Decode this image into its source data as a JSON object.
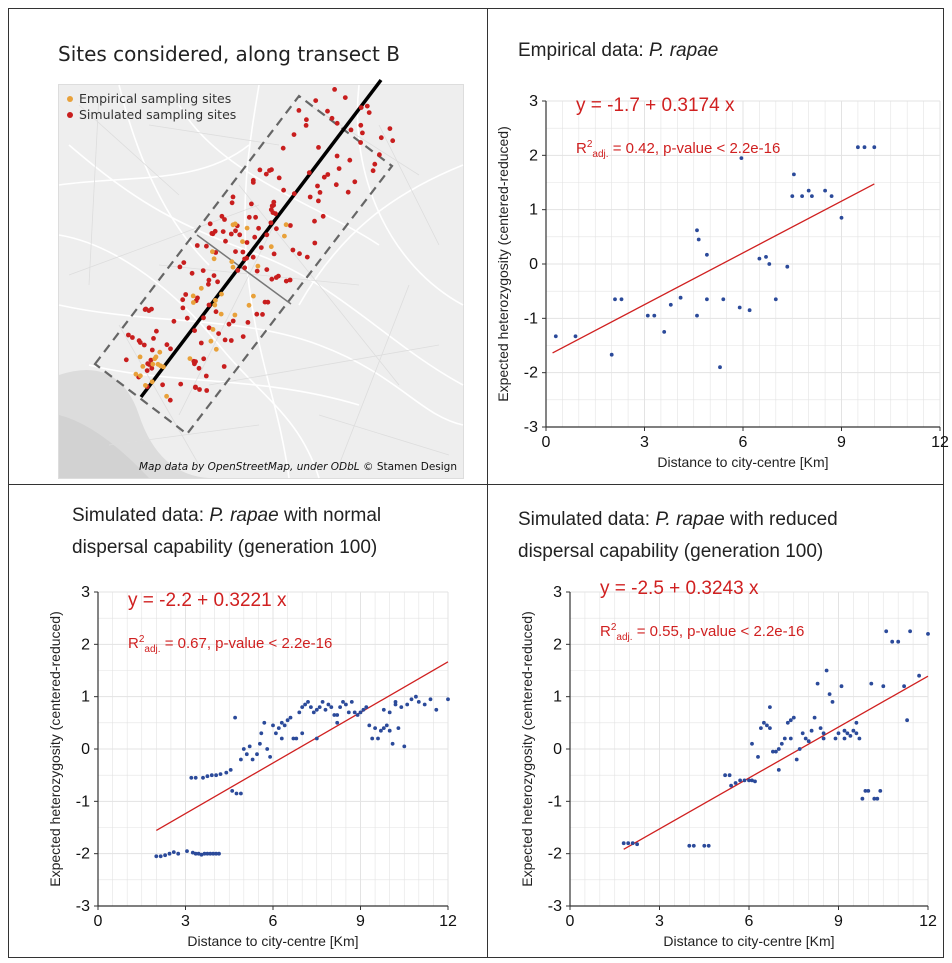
{
  "map_panel": {
    "title": "Sites considered, along transect B",
    "legend": [
      {
        "label": "Empirical sampling sites",
        "color": "#e8a13a"
      },
      {
        "label": "Simulated sampling sites",
        "color": "#c81e1e"
      }
    ],
    "credit_prefix": "Map data by OpenStreetMap, under ODbL",
    "credit_suffix": "© Stamen Design"
  },
  "colors": {
    "point": "#2b4a9a",
    "fit": "#d02020",
    "equation": "#d02020",
    "grid": "#e3e3e3"
  },
  "chart_data": [
    {
      "type": "scatter",
      "title_prefix": "Empirical data: ",
      "title_species": "P. rapae",
      "title_suffix_line1": "",
      "title_line2": "",
      "equation": "y = -1.7 + 0.3174 x",
      "r2_value": "= 0.42, p-value < 2.2e-16",
      "xlabel": "Distance to city-centre [Km]",
      "ylabel": "Expected heterozygosity (centered-reduced)",
      "xlim": [
        0,
        12
      ],
      "ylim": [
        -3,
        3
      ],
      "xticks": [
        "0",
        "3",
        "6",
        "9",
        "12"
      ],
      "yticks": [
        "3",
        "2",
        "1",
        "0",
        "-1",
        "-2",
        "-3"
      ],
      "fit": {
        "intercept": -1.7,
        "slope": 0.3174,
        "x_range": [
          0.2,
          10
        ]
      },
      "points": [
        [
          0.3,
          -1.33
        ],
        [
          0.9,
          -1.33
        ],
        [
          2.0,
          -1.67
        ],
        [
          2.1,
          -0.65
        ],
        [
          2.3,
          -0.65
        ],
        [
          3.1,
          -0.95
        ],
        [
          3.3,
          -0.95
        ],
        [
          3.6,
          -1.25
        ],
        [
          3.8,
          -0.75
        ],
        [
          4.1,
          -0.62
        ],
        [
          4.6,
          -0.95
        ],
        [
          4.6,
          0.62
        ],
        [
          4.65,
          0.45
        ],
        [
          4.9,
          0.17
        ],
        [
          4.9,
          -0.65
        ],
        [
          5.3,
          -1.9
        ],
        [
          5.4,
          -0.65
        ],
        [
          5.9,
          -0.8
        ],
        [
          5.95,
          1.95
        ],
        [
          6.2,
          -0.85
        ],
        [
          6.5,
          0.1
        ],
        [
          6.7,
          0.13
        ],
        [
          6.8,
          0.0
        ],
        [
          7.0,
          -0.65
        ],
        [
          7.35,
          -0.05
        ],
        [
          7.5,
          1.25
        ],
        [
          7.55,
          1.65
        ],
        [
          7.8,
          1.25
        ],
        [
          8.0,
          1.35
        ],
        [
          8.1,
          1.25
        ],
        [
          8.5,
          1.35
        ],
        [
          8.7,
          1.25
        ],
        [
          9.0,
          0.85
        ],
        [
          9.5,
          2.15
        ],
        [
          9.7,
          2.15
        ],
        [
          10.0,
          2.15
        ]
      ]
    },
    {
      "type": "scatter",
      "title_prefix": "Simulated data: ",
      "title_species": "P. rapae",
      "title_suffix_line1": " with normal",
      "title_line2": "dispersal capability (generation 100)",
      "equation": "y = -2.2 + 0.3221 x",
      "r2_value": "= 0.67, p-value < 2.2e-16",
      "xlabel": "Distance to city-centre [Km]",
      "ylabel": "Expected heterozygosity (centered-reduced)",
      "xlim": [
        0,
        12
      ],
      "ylim": [
        -3,
        3
      ],
      "xticks": [
        "0",
        "3",
        "6",
        "9",
        "12"
      ],
      "yticks": [
        "3",
        "2",
        "1",
        "0",
        "-1",
        "-2",
        "-3"
      ],
      "fit": {
        "intercept": -2.2,
        "slope": 0.3221,
        "x_range": [
          2,
          12
        ]
      },
      "points": [
        [
          2.0,
          -2.05
        ],
        [
          2.15,
          -2.05
        ],
        [
          2.3,
          -2.03
        ],
        [
          2.45,
          -2.0
        ],
        [
          2.6,
          -1.97
        ],
        [
          2.75,
          -2.0
        ],
        [
          3.05,
          -1.95
        ],
        [
          3.25,
          -1.98
        ],
        [
          3.35,
          -2.0
        ],
        [
          3.45,
          -2.0
        ],
        [
          3.55,
          -2.02
        ],
        [
          3.65,
          -2.0
        ],
        [
          3.75,
          -2.0
        ],
        [
          3.85,
          -2.0
        ],
        [
          3.95,
          -2.0
        ],
        [
          4.05,
          -2.0
        ],
        [
          4.15,
          -2.0
        ],
        [
          3.2,
          -0.55
        ],
        [
          3.35,
          -0.55
        ],
        [
          3.6,
          -0.55
        ],
        [
          3.75,
          -0.52
        ],
        [
          3.9,
          -0.5
        ],
        [
          4.05,
          -0.5
        ],
        [
          4.2,
          -0.48
        ],
        [
          4.4,
          -0.45
        ],
        [
          4.55,
          -0.4
        ],
        [
          4.6,
          -0.8
        ],
        [
          4.75,
          -0.85
        ],
        [
          4.9,
          -0.85
        ],
        [
          4.7,
          0.6
        ],
        [
          4.9,
          -0.2
        ],
        [
          5.0,
          0.0
        ],
        [
          5.1,
          -0.1
        ],
        [
          5.2,
          0.05
        ],
        [
          5.3,
          -0.2
        ],
        [
          5.45,
          -0.1
        ],
        [
          5.55,
          0.1
        ],
        [
          5.6,
          0.3
        ],
        [
          5.7,
          0.5
        ],
        [
          5.8,
          0.0
        ],
        [
          5.9,
          -0.15
        ],
        [
          6.0,
          0.45
        ],
        [
          6.1,
          0.3
        ],
        [
          6.2,
          0.4
        ],
        [
          6.3,
          0.5
        ],
        [
          6.4,
          0.45
        ],
        [
          6.5,
          0.55
        ],
        [
          6.6,
          0.6
        ],
        [
          6.7,
          0.2
        ],
        [
          6.8,
          0.2
        ],
        [
          6.9,
          0.7
        ],
        [
          7.0,
          0.8
        ],
        [
          7.1,
          0.85
        ],
        [
          7.2,
          0.9
        ],
        [
          7.3,
          0.8
        ],
        [
          7.4,
          0.7
        ],
        [
          7.5,
          0.75
        ],
        [
          7.6,
          0.8
        ],
        [
          7.7,
          0.9
        ],
        [
          7.8,
          0.75
        ],
        [
          7.9,
          0.85
        ],
        [
          8.0,
          0.8
        ],
        [
          8.1,
          0.65
        ],
        [
          8.2,
          0.5
        ],
        [
          8.3,
          0.8
        ],
        [
          8.4,
          0.9
        ],
        [
          8.5,
          0.85
        ],
        [
          8.6,
          0.7
        ],
        [
          8.7,
          0.9
        ],
        [
          8.8,
          0.7
        ],
        [
          8.9,
          0.65
        ],
        [
          9.0,
          0.7
        ],
        [
          9.1,
          0.75
        ],
        [
          9.2,
          0.8
        ],
        [
          9.3,
          0.45
        ],
        [
          9.4,
          0.2
        ],
        [
          9.5,
          0.4
        ],
        [
          9.6,
          0.2
        ],
        [
          9.7,
          0.35
        ],
        [
          9.8,
          0.4
        ],
        [
          9.9,
          0.45
        ],
        [
          10.0,
          0.35
        ],
        [
          10.1,
          0.1
        ],
        [
          10.2,
          0.9
        ],
        [
          10.3,
          0.4
        ],
        [
          10.4,
          0.8
        ],
        [
          10.5,
          0.05
        ],
        [
          10.6,
          0.85
        ],
        [
          10.75,
          0.95
        ],
        [
          10.9,
          1.0
        ],
        [
          11.0,
          0.9
        ],
        [
          11.2,
          0.85
        ],
        [
          11.4,
          0.95
        ],
        [
          11.6,
          0.75
        ],
        [
          12.0,
          0.95
        ],
        [
          9.8,
          0.75
        ],
        [
          10.0,
          0.7
        ],
        [
          10.2,
          0.85
        ],
        [
          7.0,
          0.3
        ],
        [
          7.5,
          0.2
        ],
        [
          6.3,
          0.2
        ],
        [
          8.2,
          0.65
        ]
      ]
    },
    {
      "type": "scatter",
      "title_prefix": "Simulated data: ",
      "title_species": "P. rapae",
      "title_suffix_line1": " with reduced",
      "title_line2": "dispersal capability (generation 100)",
      "equation": "y = -2.5 + 0.3243 x",
      "r2_value": "= 0.55, p-value < 2.2e-16",
      "xlabel": "Distance to city-centre [Km]",
      "ylabel": "Expected heterozygosity (centered-reduced)",
      "xlim": [
        0,
        12
      ],
      "ylim": [
        -3,
        3
      ],
      "xticks": [
        "0",
        "3",
        "6",
        "9",
        "12"
      ],
      "yticks": [
        "3",
        "2",
        "1",
        "0",
        "-1",
        "-2",
        "-3"
      ],
      "fit": {
        "intercept": -2.5,
        "slope": 0.3243,
        "x_range": [
          1.8,
          12
        ]
      },
      "points": [
        [
          1.8,
          -1.8
        ],
        [
          1.95,
          -1.8
        ],
        [
          2.1,
          -1.8
        ],
        [
          2.25,
          -1.82
        ],
        [
          4.0,
          -1.85
        ],
        [
          4.15,
          -1.85
        ],
        [
          4.5,
          -1.85
        ],
        [
          4.65,
          -1.85
        ],
        [
          5.2,
          -0.5
        ],
        [
          5.35,
          -0.5
        ],
        [
          5.4,
          -0.7
        ],
        [
          5.55,
          -0.65
        ],
        [
          5.7,
          -0.6
        ],
        [
          5.85,
          -0.6
        ],
        [
          6.0,
          -0.6
        ],
        [
          6.1,
          -0.6
        ],
        [
          6.2,
          -0.62
        ],
        [
          6.3,
          -0.15
        ],
        [
          6.4,
          0.4
        ],
        [
          6.5,
          0.5
        ],
        [
          6.6,
          0.45
        ],
        [
          6.7,
          0.4
        ],
        [
          6.8,
          -0.05
        ],
        [
          6.9,
          -0.05
        ],
        [
          7.0,
          -0.4
        ],
        [
          7.1,
          0.1
        ],
        [
          7.2,
          0.2
        ],
        [
          7.3,
          0.5
        ],
        [
          7.4,
          0.55
        ],
        [
          7.5,
          0.6
        ],
        [
          7.6,
          -0.2
        ],
        [
          7.7,
          0.0
        ],
        [
          7.8,
          0.3
        ],
        [
          7.9,
          0.2
        ],
        [
          8.0,
          0.15
        ],
        [
          8.1,
          0.35
        ],
        [
          8.2,
          0.6
        ],
        [
          8.3,
          1.25
        ],
        [
          8.4,
          0.4
        ],
        [
          8.5,
          0.3
        ],
        [
          8.6,
          1.5
        ],
        [
          8.7,
          1.05
        ],
        [
          8.8,
          0.9
        ],
        [
          8.9,
          0.2
        ],
        [
          9.0,
          0.3
        ],
        [
          9.1,
          1.2
        ],
        [
          9.2,
          0.35
        ],
        [
          9.3,
          0.3
        ],
        [
          9.4,
          0.25
        ],
        [
          9.5,
          0.35
        ],
        [
          9.6,
          0.5
        ],
        [
          9.7,
          0.2
        ],
        [
          9.8,
          -0.95
        ],
        [
          9.9,
          -0.8
        ],
        [
          10.0,
          -0.8
        ],
        [
          10.1,
          1.25
        ],
        [
          10.2,
          -0.95
        ],
        [
          10.3,
          -0.95
        ],
        [
          10.4,
          -0.8
        ],
        [
          10.5,
          1.2
        ],
        [
          10.6,
          2.25
        ],
        [
          10.8,
          2.05
        ],
        [
          11.0,
          2.05
        ],
        [
          11.2,
          1.2
        ],
        [
          11.3,
          0.55
        ],
        [
          11.4,
          2.25
        ],
        [
          11.7,
          1.4
        ],
        [
          12.0,
          2.2
        ],
        [
          6.7,
          0.8
        ],
        [
          7.4,
          0.2
        ],
        [
          8.5,
          0.2
        ],
        [
          6.1,
          0.1
        ],
        [
          7.0,
          0.0
        ],
        [
          9.2,
          0.2
        ],
        [
          9.6,
          0.3
        ]
      ]
    }
  ]
}
